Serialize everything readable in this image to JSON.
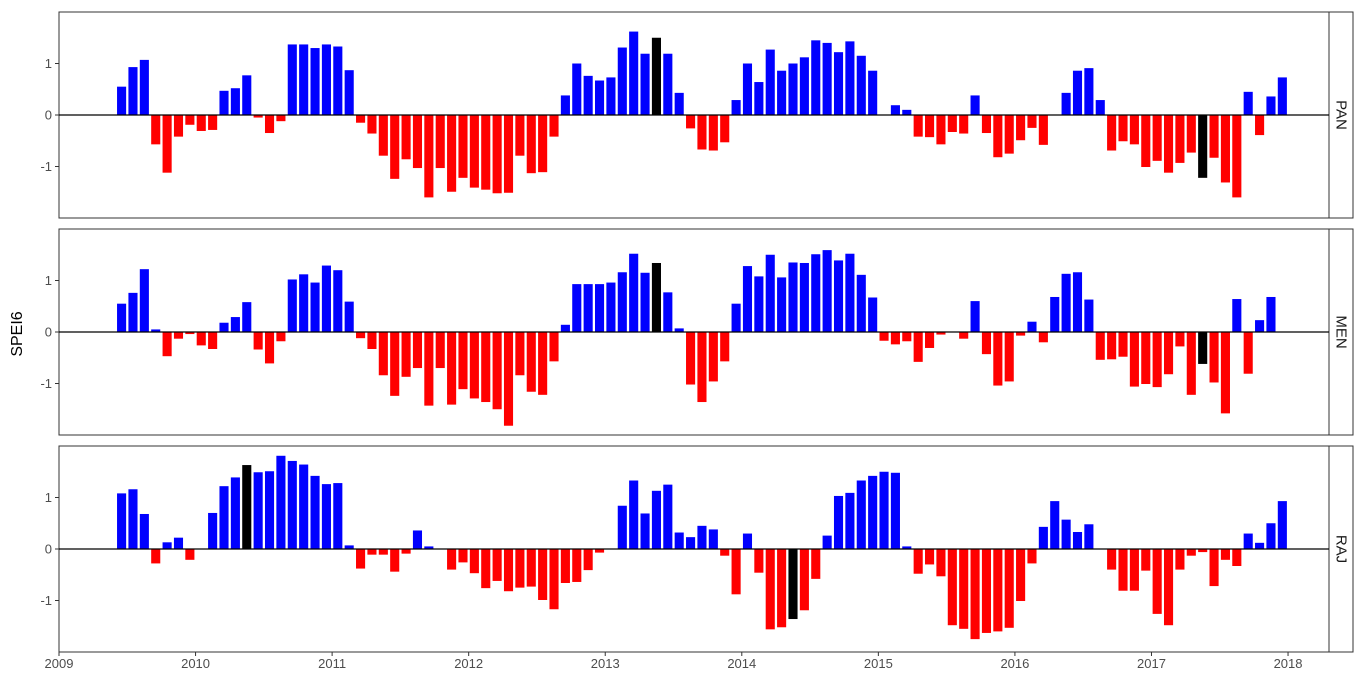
{
  "chart_data": {
    "type": "bar",
    "ylabel": "SPEI6",
    "xlabel": "",
    "x_ticks": [
      "2009",
      "2010",
      "2011",
      "2012",
      "2013",
      "2014",
      "2015",
      "2016",
      "2017",
      "2018"
    ],
    "y_ticks": [
      "-1",
      "0",
      "1"
    ],
    "xlim": [
      2009.0,
      2018.3
    ],
    "ylim": [
      -2.0,
      2.0
    ],
    "grid": false,
    "legend": "none",
    "colors": {
      "positive": "#0000ff",
      "negative": "#ff0000",
      "highlight": "#000000"
    },
    "start_month": "2009-06",
    "panels": [
      {
        "label": "PAN",
        "highlight_months": [
          "2013-05",
          "2017-05"
        ],
        "values": [
          0.55,
          0.93,
          1.07,
          -0.57,
          -1.12,
          -0.42,
          -0.19,
          -0.31,
          -0.29,
          0.47,
          0.52,
          0.77,
          -0.05,
          -0.35,
          -0.12,
          1.37,
          1.37,
          1.3,
          1.37,
          1.33,
          0.87,
          -0.15,
          -0.36,
          -0.79,
          -1.24,
          -0.86,
          -1.03,
          -1.6,
          -1.03,
          -1.49,
          -1.22,
          -1.41,
          -1.45,
          -1.52,
          -1.51,
          -0.79,
          -1.13,
          -1.11,
          -0.42,
          0.38,
          1.0,
          0.76,
          0.67,
          0.73,
          1.31,
          1.62,
          1.19,
          1.5,
          1.19,
          0.43,
          -0.26,
          -0.67,
          -0.69,
          -0.53,
          0.29,
          1.0,
          0.64,
          1.27,
          0.86,
          1.0,
          1.12,
          1.45,
          1.4,
          1.22,
          1.43,
          1.15,
          0.86,
          0.0,
          0.19,
          0.1,
          -0.42,
          -0.43,
          -0.57,
          -0.33,
          -0.36,
          0.38,
          -0.35,
          -0.82,
          -0.75,
          -0.49,
          -0.25,
          -0.58,
          0.0,
          0.43,
          0.86,
          0.91,
          0.29,
          -0.69,
          -0.51,
          -0.57,
          -1.01,
          -0.89,
          -1.12,
          -0.93,
          -0.73,
          -1.22,
          -0.83,
          -1.31,
          -1.6,
          0.45,
          -0.39,
          0.36,
          0.73
        ]
      },
      {
        "label": "MEN",
        "highlight_months": [
          "2013-05",
          "2017-05"
        ],
        "values": [
          0.55,
          0.76,
          1.22,
          0.05,
          -0.47,
          -0.13,
          -0.04,
          -0.26,
          -0.33,
          0.18,
          0.29,
          0.58,
          -0.34,
          -0.61,
          -0.18,
          1.02,
          1.12,
          0.96,
          1.29,
          1.2,
          0.59,
          -0.12,
          -0.33,
          -0.84,
          -1.24,
          -0.87,
          -0.7,
          -1.43,
          -0.7,
          -1.41,
          -1.11,
          -1.29,
          -1.36,
          -1.5,
          -1.82,
          -0.84,
          -1.16,
          -1.22,
          -0.57,
          0.14,
          0.93,
          0.93,
          0.93,
          0.96,
          1.16,
          1.52,
          1.15,
          1.34,
          0.77,
          0.07,
          -1.02,
          -1.36,
          -0.96,
          -0.57,
          0.55,
          1.28,
          1.08,
          1.5,
          1.06,
          1.35,
          1.34,
          1.51,
          1.59,
          1.39,
          1.52,
          1.11,
          0.67,
          -0.17,
          -0.24,
          -0.18,
          -0.58,
          -0.31,
          -0.05,
          0.0,
          -0.13,
          0.6,
          -0.43,
          -1.04,
          -0.96,
          -0.07,
          0.2,
          -0.2,
          0.68,
          1.13,
          1.16,
          0.63,
          -0.54,
          -0.53,
          -0.48,
          -1.06,
          -1.01,
          -1.07,
          -0.82,
          -0.28,
          -1.22,
          -0.62,
          -0.98,
          -1.58,
          0.64,
          -0.81,
          0.23,
          0.68
        ]
      },
      {
        "label": "RAJ",
        "highlight_months": [
          "2010-05",
          "2014-05"
        ],
        "values": [
          1.08,
          1.16,
          0.68,
          -0.28,
          0.13,
          0.22,
          -0.21,
          0.0,
          0.7,
          1.22,
          1.39,
          1.63,
          1.49,
          1.51,
          1.81,
          1.71,
          1.64,
          1.42,
          1.26,
          1.28,
          0.07,
          -0.38,
          -0.11,
          -0.11,
          -0.44,
          -0.09,
          0.36,
          0.05,
          0.0,
          -0.4,
          -0.26,
          -0.47,
          -0.76,
          -0.62,
          -0.82,
          -0.75,
          -0.73,
          -0.99,
          -1.17,
          -0.66,
          -0.64,
          -0.41,
          -0.07,
          0.0,
          0.84,
          1.33,
          0.69,
          1.13,
          1.25,
          0.32,
          0.23,
          0.45,
          0.38,
          -0.13,
          -0.88,
          0.3,
          -0.46,
          -1.56,
          -1.52,
          -1.36,
          -1.19,
          -0.58,
          0.26,
          1.03,
          1.09,
          1.33,
          1.42,
          1.5,
          1.48,
          0.05,
          -0.48,
          -0.3,
          -0.53,
          -1.48,
          -1.55,
          -1.75,
          -1.63,
          -1.6,
          -1.53,
          -1.01,
          -0.28,
          0.43,
          0.93,
          0.57,
          0.33,
          0.48,
          0.0,
          -0.4,
          -0.81,
          -0.81,
          -0.42,
          -1.26,
          -1.48,
          -0.4,
          -0.13,
          -0.06,
          -0.72,
          -0.21,
          -0.33,
          0.3,
          0.12,
          0.5,
          0.93
        ]
      }
    ]
  }
}
